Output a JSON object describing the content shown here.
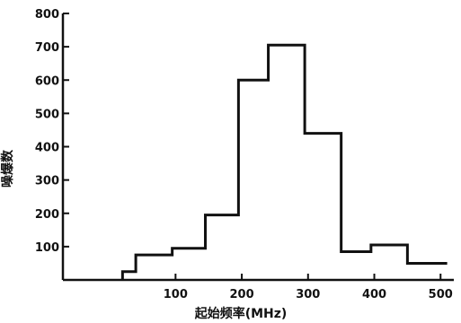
{
  "chart_data": {
    "type": "bar",
    "title": "",
    "xlabel": "起始频率(MHz)",
    "ylabel": "噪爆数",
    "xlim": [
      -70,
      520
    ],
    "ylim": [
      0,
      800
    ],
    "x_ticks": [
      100,
      200,
      300,
      400,
      500
    ],
    "y_ticks": [
      100,
      200,
      300,
      400,
      500,
      600,
      700,
      800
    ],
    "bins": [
      {
        "x0": 20,
        "x1": 40,
        "value": 25
      },
      {
        "x0": 40,
        "x1": 95,
        "value": 75
      },
      {
        "x0": 95,
        "x1": 145,
        "value": 95
      },
      {
        "x0": 145,
        "x1": 195,
        "value": 195
      },
      {
        "x0": 195,
        "x1": 240,
        "value": 600
      },
      {
        "x0": 240,
        "x1": 295,
        "value": 705
      },
      {
        "x0": 295,
        "x1": 350,
        "value": 440
      },
      {
        "x0": 350,
        "x1": 395,
        "value": 85
      },
      {
        "x0": 395,
        "x1": 450,
        "value": 105
      },
      {
        "x0": 450,
        "x1": 510,
        "value": 50
      }
    ]
  }
}
